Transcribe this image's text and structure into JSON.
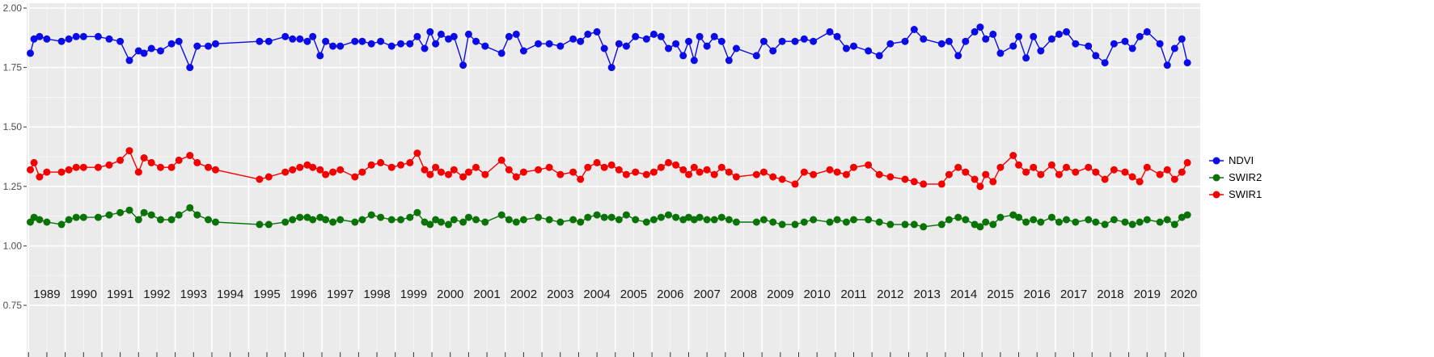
{
  "figure": {
    "background": "#FFFFFF",
    "panel_background": "#EBEBEB",
    "gridline_color": "#FFFFFF",
    "axis_text_color_y": "#4D4D4D",
    "axis_text_color_x": "#1A1A1A",
    "tick_color": "#333333"
  },
  "legend": {
    "items": [
      {
        "label": "NDVI"
      },
      {
        "label": "SWIR2"
      },
      {
        "label": "SWIR1"
      }
    ]
  },
  "axes": {
    "y_tick_labels": [
      "2.00",
      "1.75",
      "1.50",
      "1.25",
      "1.00",
      "0.75"
    ],
    "y_tick_values": [
      2.0,
      1.75,
      1.5,
      1.25,
      1.0,
      0.75
    ],
    "y_minor_values": [
      1.875,
      1.625,
      1.375,
      1.125,
      0.875
    ],
    "x_tick_labels": [
      "1989",
      "1990",
      "1991",
      "1992",
      "1993",
      "1994",
      "1995",
      "1996",
      "1997",
      "1998",
      "1999",
      "2000",
      "2001",
      "2002",
      "2003",
      "2004",
      "2005",
      "2006",
      "2007",
      "2008",
      "2009",
      "2010",
      "2011",
      "2012",
      "2013",
      "2014",
      "2015",
      "2016",
      "2017",
      "2018",
      "2019",
      "2020"
    ],
    "x_start_year": 1989,
    "x_range": [
      1988.95,
      2020.95
    ],
    "y_range": [
      0.75,
      2.0
    ]
  },
  "chart_data": {
    "type": "line",
    "title": "",
    "xlabel": "",
    "ylabel": "",
    "grid": true,
    "legend_position": "right",
    "ylim": [
      0.75,
      2.0
    ],
    "x": [
      1989.05,
      1989.15,
      1989.3,
      1989.5,
      1989.9,
      1990.1,
      1990.3,
      1990.5,
      1990.9,
      1991.2,
      1991.5,
      1991.75,
      1992.0,
      1992.15,
      1992.35,
      1992.6,
      1992.9,
      1993.1,
      1993.4,
      1993.6,
      1993.9,
      1994.1,
      1995.3,
      1995.55,
      1996.0,
      1996.2,
      1996.4,
      1996.6,
      1996.75,
      1996.95,
      1997.1,
      1997.3,
      1997.5,
      1997.9,
      1998.1,
      1998.35,
      1998.6,
      1998.9,
      1999.15,
      1999.4,
      1999.6,
      1999.8,
      1999.95,
      2000.1,
      2000.25,
      2000.45,
      2000.6,
      2000.85,
      2001.0,
      2001.2,
      2001.45,
      2001.9,
      2002.1,
      2002.3,
      2002.5,
      2002.9,
      2003.2,
      2003.5,
      2003.85,
      2004.05,
      2004.25,
      2004.5,
      2004.7,
      2004.9,
      2005.1,
      2005.3,
      2005.55,
      2005.85,
      2006.05,
      2006.25,
      2006.45,
      2006.65,
      2006.85,
      2007.0,
      2007.15,
      2007.3,
      2007.5,
      2007.7,
      2007.9,
      2008.1,
      2008.3,
      2008.85,
      2009.05,
      2009.3,
      2009.55,
      2009.9,
      2010.15,
      2010.4,
      2010.85,
      2011.05,
      2011.3,
      2011.5,
      2011.9,
      2012.2,
      2012.5,
      2012.9,
      2013.15,
      2013.4,
      2013.9,
      2014.1,
      2014.35,
      2014.55,
      2014.8,
      2014.95,
      2015.1,
      2015.3,
      2015.5,
      2015.85,
      2016.0,
      2016.2,
      2016.4,
      2016.6,
      2016.9,
      2017.1,
      2017.3,
      2017.55,
      2017.9,
      2018.1,
      2018.35,
      2018.6,
      2018.9,
      2019.1,
      2019.3,
      2019.5,
      2019.85,
      2020.05,
      2020.25,
      2020.45,
      2020.6
    ],
    "series": [
      {
        "name": "NDVI",
        "color": "#0B0BE8",
        "values": [
          1.81,
          1.87,
          1.88,
          1.87,
          1.86,
          1.87,
          1.88,
          1.88,
          1.88,
          1.87,
          1.86,
          1.78,
          1.82,
          1.81,
          1.83,
          1.82,
          1.85,
          1.86,
          1.75,
          1.84,
          1.84,
          1.85,
          1.86,
          1.86,
          1.88,
          1.87,
          1.87,
          1.86,
          1.88,
          1.8,
          1.86,
          1.84,
          1.84,
          1.86,
          1.86,
          1.85,
          1.86,
          1.84,
          1.85,
          1.85,
          1.88,
          1.83,
          1.9,
          1.85,
          1.89,
          1.87,
          1.88,
          1.76,
          1.89,
          1.86,
          1.84,
          1.81,
          1.88,
          1.89,
          1.82,
          1.85,
          1.85,
          1.84,
          1.87,
          1.86,
          1.89,
          1.9,
          1.83,
          1.75,
          1.85,
          1.84,
          1.88,
          1.87,
          1.89,
          1.88,
          1.83,
          1.85,
          1.8,
          1.86,
          1.78,
          1.88,
          1.84,
          1.88,
          1.86,
          1.78,
          1.83,
          1.8,
          1.86,
          1.82,
          1.86,
          1.86,
          1.87,
          1.86,
          1.9,
          1.88,
          1.83,
          1.84,
          1.82,
          1.8,
          1.85,
          1.86,
          1.91,
          1.87,
          1.85,
          1.86,
          1.8,
          1.86,
          1.9,
          1.92,
          1.87,
          1.89,
          1.81,
          1.84,
          1.88,
          1.79,
          1.88,
          1.82,
          1.87,
          1.89,
          1.9,
          1.85,
          1.84,
          1.8,
          1.77,
          1.85,
          1.86,
          1.83,
          1.88,
          1.9,
          1.85,
          1.76,
          1.83,
          1.87,
          1.77
        ]
      },
      {
        "name": "SWIR2",
        "color": "#0A7308",
        "values": [
          1.1,
          1.12,
          1.11,
          1.1,
          1.09,
          1.11,
          1.12,
          1.12,
          1.12,
          1.13,
          1.14,
          1.15,
          1.11,
          1.14,
          1.13,
          1.11,
          1.11,
          1.13,
          1.16,
          1.13,
          1.11,
          1.1,
          1.09,
          1.09,
          1.1,
          1.11,
          1.12,
          1.12,
          1.11,
          1.12,
          1.11,
          1.1,
          1.11,
          1.1,
          1.11,
          1.13,
          1.12,
          1.11,
          1.11,
          1.12,
          1.14,
          1.1,
          1.09,
          1.11,
          1.1,
          1.09,
          1.11,
          1.1,
          1.12,
          1.11,
          1.1,
          1.13,
          1.11,
          1.1,
          1.11,
          1.12,
          1.11,
          1.1,
          1.11,
          1.1,
          1.12,
          1.13,
          1.12,
          1.12,
          1.11,
          1.13,
          1.11,
          1.1,
          1.11,
          1.12,
          1.13,
          1.12,
          1.11,
          1.12,
          1.11,
          1.12,
          1.11,
          1.11,
          1.12,
          1.11,
          1.1,
          1.1,
          1.11,
          1.1,
          1.09,
          1.09,
          1.1,
          1.11,
          1.1,
          1.11,
          1.1,
          1.11,
          1.11,
          1.1,
          1.09,
          1.09,
          1.09,
          1.08,
          1.09,
          1.11,
          1.12,
          1.11,
          1.09,
          1.08,
          1.1,
          1.09,
          1.12,
          1.13,
          1.12,
          1.1,
          1.11,
          1.1,
          1.12,
          1.1,
          1.11,
          1.1,
          1.11,
          1.1,
          1.09,
          1.11,
          1.1,
          1.09,
          1.1,
          1.11,
          1.1,
          1.11,
          1.09,
          1.12,
          1.13
        ]
      },
      {
        "name": "SWIR1",
        "color": "#F50000",
        "values": [
          1.32,
          1.35,
          1.29,
          1.31,
          1.31,
          1.32,
          1.33,
          1.33,
          1.33,
          1.34,
          1.36,
          1.4,
          1.31,
          1.37,
          1.35,
          1.33,
          1.33,
          1.36,
          1.38,
          1.35,
          1.33,
          1.32,
          1.28,
          1.29,
          1.31,
          1.32,
          1.33,
          1.34,
          1.33,
          1.32,
          1.3,
          1.31,
          1.32,
          1.29,
          1.31,
          1.34,
          1.35,
          1.33,
          1.34,
          1.35,
          1.39,
          1.32,
          1.3,
          1.33,
          1.31,
          1.3,
          1.32,
          1.29,
          1.31,
          1.33,
          1.3,
          1.36,
          1.32,
          1.29,
          1.31,
          1.32,
          1.33,
          1.3,
          1.31,
          1.28,
          1.33,
          1.35,
          1.33,
          1.34,
          1.32,
          1.3,
          1.31,
          1.3,
          1.31,
          1.33,
          1.35,
          1.34,
          1.32,
          1.3,
          1.33,
          1.31,
          1.32,
          1.3,
          1.33,
          1.31,
          1.29,
          1.3,
          1.31,
          1.29,
          1.28,
          1.26,
          1.31,
          1.3,
          1.32,
          1.31,
          1.3,
          1.33,
          1.34,
          1.3,
          1.29,
          1.28,
          1.27,
          1.26,
          1.26,
          1.3,
          1.33,
          1.31,
          1.28,
          1.25,
          1.3,
          1.27,
          1.33,
          1.38,
          1.34,
          1.31,
          1.33,
          1.3,
          1.34,
          1.3,
          1.33,
          1.31,
          1.33,
          1.31,
          1.28,
          1.32,
          1.31,
          1.29,
          1.27,
          1.33,
          1.3,
          1.32,
          1.28,
          1.31,
          1.35
        ]
      }
    ]
  }
}
